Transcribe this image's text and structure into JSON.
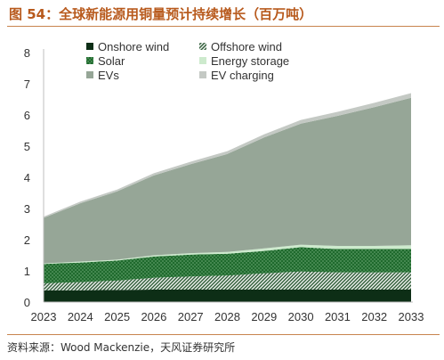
{
  "figure_title": "图 54：全球新能源用铜量预计持续增长（百万吨）",
  "source": "资料来源：Wood  Mackenzie，天风证券研究所",
  "chart_data": {
    "type": "area",
    "stacked": true,
    "title": "",
    "xlabel": "",
    "ylabel": "",
    "categories": [
      "2023",
      "2024",
      "2025",
      "2026",
      "2027",
      "2028",
      "2029",
      "2030",
      "2031",
      "2032",
      "2033"
    ],
    "ylim": [
      0,
      8
    ],
    "yticks": [
      "0",
      "1",
      "2",
      "3",
      "4",
      "5",
      "6",
      "7",
      "8"
    ],
    "grid": false,
    "legend_position": "top-left",
    "series": [
      {
        "name": "Onshore wind",
        "color": "#0d2e16",
        "pattern": "solid",
        "values": [
          0.38,
          0.38,
          0.39,
          0.4,
          0.4,
          0.4,
          0.4,
          0.4,
          0.4,
          0.4,
          0.4
        ]
      },
      {
        "name": "Offshore wind",
        "color": "#3c6b45",
        "pattern": "diagonal",
        "values": [
          0.22,
          0.26,
          0.3,
          0.38,
          0.42,
          0.45,
          0.52,
          0.58,
          0.55,
          0.55,
          0.55
        ]
      },
      {
        "name": "Solar",
        "color": "#1e6a2e",
        "pattern": "dots",
        "values": [
          0.62,
          0.63,
          0.64,
          0.68,
          0.7,
          0.7,
          0.72,
          0.78,
          0.75,
          0.75,
          0.75
        ]
      },
      {
        "name": "Energy storage",
        "color": "#cdeacd",
        "pattern": "solid",
        "values": [
          0.02,
          0.03,
          0.03,
          0.04,
          0.05,
          0.06,
          0.08,
          0.08,
          0.1,
          0.1,
          0.12
        ]
      },
      {
        "name": "EVs",
        "color": "#96a697",
        "pattern": "solid",
        "values": [
          1.46,
          1.87,
          2.19,
          2.56,
          2.85,
          3.14,
          3.56,
          3.88,
          4.17,
          4.45,
          4.73
        ]
      },
      {
        "name": "EV charging",
        "color": "#c4c9c4",
        "pattern": "solid",
        "values": [
          0.04,
          0.05,
          0.06,
          0.07,
          0.08,
          0.09,
          0.1,
          0.12,
          0.13,
          0.14,
          0.15
        ]
      }
    ]
  }
}
